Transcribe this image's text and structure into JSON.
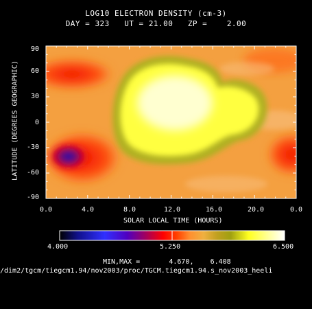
{
  "chart_data": {
    "type": "heatmap",
    "title": "LOG10 ELECTRON DENSITY (cm-3)",
    "subtitle": {
      "day_label": "DAY =",
      "day": "323",
      "ut_label": "UT =",
      "ut": "21.00",
      "zp_label": "ZP =",
      "zp": "2.00"
    },
    "xlabel": "SOLAR LOCAL TIME (HOURS)",
    "ylabel": "LATITUDE (DEGREES GEOGRAPHIC)",
    "x_ticks": [
      "0.0",
      "4.0",
      "8.0",
      "12.0",
      "16.0",
      "20.0",
      "0.0"
    ],
    "y_ticks": [
      "90",
      "60",
      "30",
      "0",
      "-30",
      "-60",
      "-90"
    ],
    "xlim": [
      0,
      24
    ],
    "ylim": [
      -90,
      90
    ],
    "colorbar": {
      "min_label": "4.000",
      "mid_label": "5.250",
      "max_label": "6.500",
      "range": [
        4.0,
        6.5
      ]
    },
    "stats": {
      "label": "MIN,MAX =",
      "min": "4.670,",
      "max": "6.408"
    },
    "file_path": "/dim2/tgcm/tiegcm1.94/nov2003/proc/TGCM.tiegcm1.94.s_nov2003_heeli",
    "field_model": {
      "description": "approximate log10 Ne field (data units) read from colour",
      "features": [
        {
          "kind": "peak",
          "x": 12.0,
          "y": 10,
          "value": 6.4
        },
        {
          "kind": "min",
          "x": 2.8,
          "y": -42,
          "value": 4.67
        },
        {
          "kind": "band-high",
          "lat_north": 62,
          "lat_south": -42,
          "value": 5.3
        }
      ]
    }
  }
}
